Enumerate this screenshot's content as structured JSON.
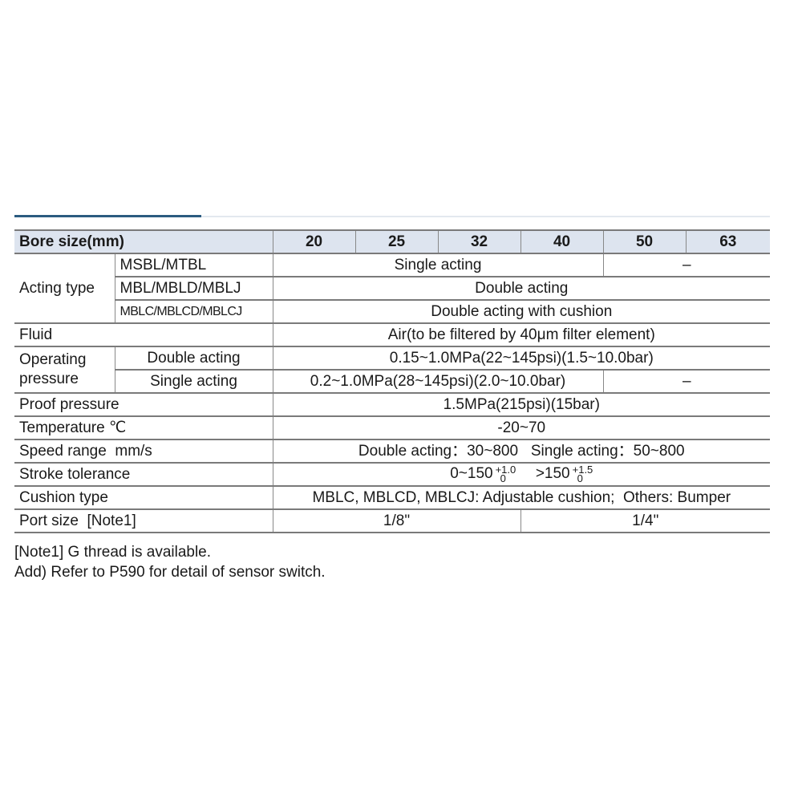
{
  "header": {
    "label": "Bore size(mm)",
    "bores": [
      "20",
      "25",
      "32",
      "40",
      "50",
      "63"
    ]
  },
  "acting_type": {
    "label": "Acting type",
    "rows": [
      {
        "model": "MSBL/MTBL",
        "value": "Single acting",
        "value_large": "–"
      },
      {
        "model": "MBL/MBLD/MBLJ",
        "value": "Double acting"
      },
      {
        "model": "MBLC/MBLCD/MBLCJ",
        "value": "Double acting with cushion"
      }
    ]
  },
  "fluid": {
    "label": "Fluid",
    "value": "Air(to be filtered by 40μm filter element)"
  },
  "operating_pressure": {
    "label": "Operating pressure",
    "rows": [
      {
        "type": "Double acting",
        "value": "0.15~1.0MPa(22~145psi)(1.5~10.0bar)"
      },
      {
        "type": "Single acting",
        "value": "0.2~1.0MPa(28~145psi)(2.0~10.0bar)",
        "value_large": "–"
      }
    ]
  },
  "proof_pressure": {
    "label": "Proof pressure",
    "value": "1.5MPa(215psi)(15bar)"
  },
  "temperature": {
    "label": "Temperature ℃",
    "value": "-20~70"
  },
  "speed_range": {
    "label": "Speed range  mm/s",
    "value": "Double acting：30~800   Single acting：50~800"
  },
  "stroke_tolerance": {
    "label": "Stroke tolerance",
    "ranges": [
      {
        "range": "0~150",
        "upper": "+1.0",
        "lower": "0"
      },
      {
        "range": ">150",
        "upper": "+1.5",
        "lower": "0"
      }
    ]
  },
  "cushion_type": {
    "label": "Cushion type",
    "value": "MBLC, MBLCD, MBLCJ: Adjustable cushion;  Others: Bumper"
  },
  "port_size": {
    "label": "Port size  [Note1]",
    "small": "1/8\"",
    "large": "1/4\""
  },
  "notes": [
    "[Note1] G thread is available.",
    "Add) Refer to P590 for detail of sensor switch."
  ]
}
